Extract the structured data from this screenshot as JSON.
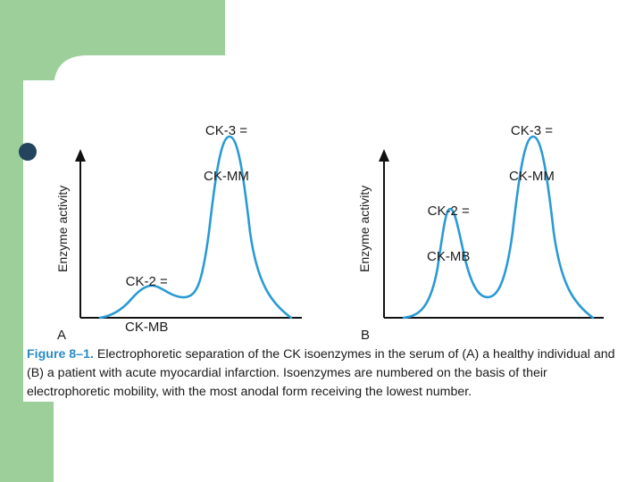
{
  "panels": [
    {
      "letter": "A",
      "y_axis_label": "Enzyme activity",
      "peaks": [
        {
          "label_line1": "CK-2 =",
          "label_line2": "CK-MB"
        },
        {
          "label_line1": "CK-3 =",
          "label_line2": "CK-MM"
        }
      ],
      "relative_heights": {
        "CK-MB": 0.17,
        "CK-MM": 1.0
      }
    },
    {
      "letter": "B",
      "y_axis_label": "Enzyme activity",
      "peaks": [
        {
          "label_line1": "CK-2 =",
          "label_line2": "CK-MB"
        },
        {
          "label_line1": "CK-3 =",
          "label_line2": "CK-MM"
        }
      ],
      "relative_heights": {
        "CK-MB": 0.6,
        "CK-MM": 1.0
      }
    }
  ],
  "caption": {
    "figure_number": "Figure 8–1.",
    "text": "Electrophoretic separation of the CK isoenzymes in the serum of (A) a healthy individual and (B) a patient with acute myocardial infarction. Isoenzymes are numbered on the basis of their electrophoretic mobility, with the most anodal form receiving the lowest number."
  },
  "colors": {
    "slide_green": "#9ccf9a",
    "curve": "#2a9ad4",
    "axis": "#111111",
    "caption_accent": "#2a8bc7"
  }
}
